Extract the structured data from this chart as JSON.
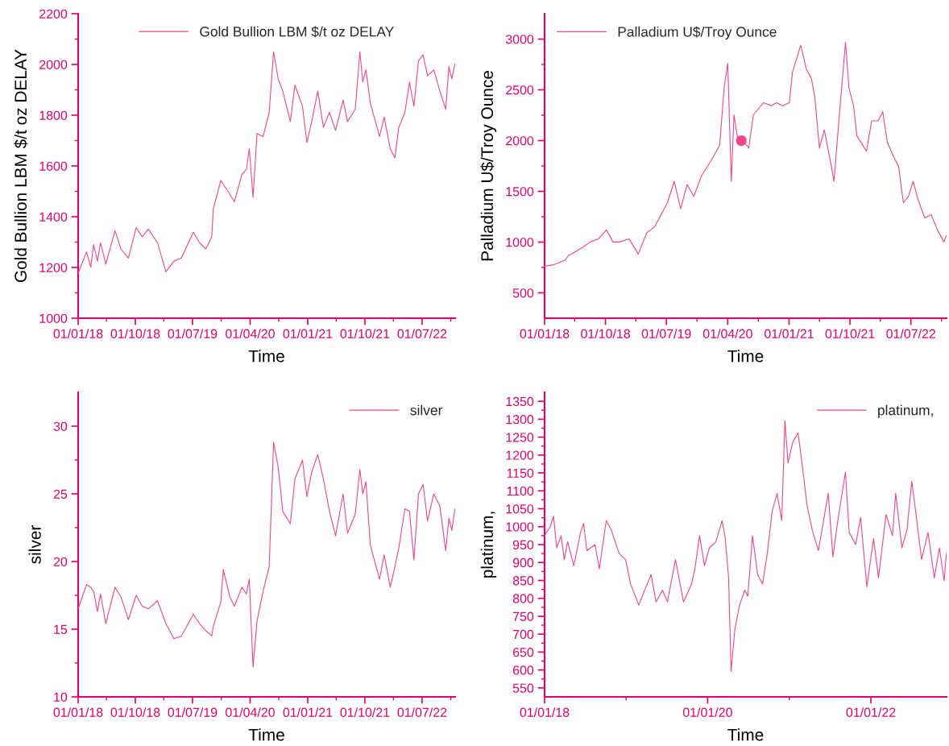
{
  "chart_data": [
    {
      "type": "line",
      "xlabel": "Time",
      "ylabel": "Gold Bullion LBM $/t oz DELAY",
      "legend": "top",
      "x": [
        "2018-01-01",
        "2018-02-10",
        "2018-03-02",
        "2018-03-16",
        "2018-04-03",
        "2018-04-18",
        "2018-05-13",
        "2018-06-26",
        "2018-07-24",
        "2018-08-29",
        "2018-10-05",
        "2018-11-03",
        "2018-12-02",
        "2019-01-15",
        "2019-02-24",
        "2019-04-03",
        "2019-05-09",
        "2019-07-05",
        "2019-08-04",
        "2019-09-02",
        "2019-10-01",
        "2019-10-08",
        "2019-11-13",
        "2019-12-26",
        "2020-01-17",
        "2020-02-22",
        "2020-03-14",
        "2020-03-28",
        "2020-04-15",
        "2020-05-04",
        "2020-06-02",
        "2020-07-01",
        "2020-07-22",
        "2020-08-13",
        "2020-09-04",
        "2020-10-10",
        "2020-11-01",
        "2020-12-07",
        "2020-12-28",
        "2021-01-20",
        "2021-02-18",
        "2021-03-17",
        "2021-04-15",
        "2021-05-14",
        "2021-06-19",
        "2021-07-10",
        "2021-08-16",
        "2021-09-07",
        "2021-09-21",
        "2021-10-06",
        "2021-10-27",
        "2021-12-10",
        "2022-01-01",
        "2022-01-30",
        "2022-02-21",
        "2022-03-12",
        "2022-04-10",
        "2022-05-02",
        "2022-05-23",
        "2022-06-14",
        "2022-07-06",
        "2022-07-27",
        "2022-08-26",
        "2022-09-24",
        "2022-10-22",
        "2022-11-06",
        "2022-11-20",
        "2022-12-05"
      ],
      "series": [
        {
          "name": "Gold Bullion LBM $/t oz DELAY",
          "color": "#f5458a",
          "values": [
            1177,
            1261,
            1201,
            1290,
            1225,
            1297,
            1213,
            1345,
            1273,
            1237,
            1357,
            1321,
            1351,
            1297,
            1183,
            1225,
            1237,
            1339,
            1297,
            1273,
            1321,
            1429,
            1543,
            1489,
            1459,
            1567,
            1585,
            1668,
            1476,
            1728,
            1716,
            1811,
            2050,
            1943,
            1895,
            1775,
            1919,
            1835,
            1692,
            1775,
            1895,
            1752,
            1811,
            1740,
            1860,
            1775,
            1823,
            2050,
            1931,
            1979,
            1847,
            1716,
            1793,
            1668,
            1632,
            1752,
            1811,
            1931,
            1835,
            2015,
            2038,
            1955,
            1979,
            1895,
            1823,
            1991,
            1943,
            2003
          ]
        }
      ],
      "xlim": [
        "2018-01-01",
        "2022-12-06"
      ],
      "xticks": [
        {
          "value": "2018-01-01",
          "label": "01/01/18"
        },
        {
          "value": "2018-05-16",
          "label": null
        },
        {
          "value": "2018-10-01",
          "label": "01/10/18"
        },
        {
          "value": "2019-02-14",
          "label": null
        },
        {
          "value": "2019-07-01",
          "label": "01/07/19"
        },
        {
          "value": "2019-11-15",
          "label": null
        },
        {
          "value": "2020-04-01",
          "label": "01/04/20"
        },
        {
          "value": "2020-08-16",
          "label": null
        },
        {
          "value": "2021-01-01",
          "label": "01/01/21"
        },
        {
          "value": "2021-05-17",
          "label": null
        },
        {
          "value": "2021-10-01",
          "label": "01/10/21"
        },
        {
          "value": "2022-02-14",
          "label": null
        },
        {
          "value": "2022-07-01",
          "label": "01/07/22"
        },
        {
          "value": "2022-11-15",
          "label": null
        }
      ],
      "ylim": [
        1000,
        2200
      ],
      "yticks": [
        1000,
        {
          "value": 1100,
          "label": null
        },
        1200,
        {
          "value": 1300,
          "label": null
        },
        1400,
        {
          "value": 1500,
          "label": null
        },
        1600,
        {
          "value": 1700,
          "label": null
        },
        1800,
        {
          "value": 1900,
          "label": null
        },
        2000,
        {
          "value": 2100,
          "label": null
        },
        2200
      ]
    },
    {
      "type": "line",
      "xlabel": "Time",
      "ylabel": "Palladium U$/Troy Ounce",
      "legend": "top left",
      "x": [
        "2018-01-01",
        "2018-02-10",
        "2018-03-02",
        "2018-03-16",
        "2018-04-03",
        "2018-04-18",
        "2018-05-13",
        "2018-06-26",
        "2018-07-24",
        "2018-08-30",
        "2018-10-05",
        "2018-11-04",
        "2018-12-02",
        "2019-01-15",
        "2019-02-25",
        "2019-04-04",
        "2019-05-09",
        "2019-07-06",
        "2019-08-05",
        "2019-09-03",
        "2019-10-02",
        "2019-11-01",
        "2019-12-06",
        "2020-01-19",
        "2020-02-25",
        "2020-03-16",
        "2020-04-01",
        "2020-04-17",
        "2020-04-29",
        "2020-05-20",
        "2020-06-05",
        "2020-07-04",
        "2020-07-25",
        "2020-09-08",
        "2020-10-14",
        "2020-11-05",
        "2020-12-03",
        "2021-01-02",
        "2021-01-16",
        "2021-02-22",
        "2021-03-20",
        "2021-04-11",
        "2021-04-26",
        "2021-05-17",
        "2021-06-08",
        "2021-07-07",
        "2021-07-21",
        "2021-08-20",
        "2021-09-11",
        "2021-09-26",
        "2021-10-17",
        "2021-11-01",
        "2021-12-14",
        "2022-01-06",
        "2022-02-04",
        "2022-02-25",
        "2022-03-17",
        "2022-04-15",
        "2022-05-07",
        "2022-05-28",
        "2022-06-20",
        "2022-07-11",
        "2022-08-02",
        "2022-09-01",
        "2022-09-30",
        "2022-10-28",
        "2022-11-26",
        "2022-12-06"
      ],
      "series": [
        {
          "name": "Palladium U$/Troy Ounce",
          "color": "#f5458a",
          "values": [
            763,
            777,
            792,
            807,
            822,
            867,
            897,
            956,
            1001,
            1031,
            1120,
            1001,
            1001,
            1031,
            882,
            1091,
            1150,
            1389,
            1598,
            1329,
            1568,
            1449,
            1657,
            1807,
            1956,
            2522,
            2761,
            1598,
            2254,
            1956,
            2016,
            1926,
            2254,
            2373,
            2343,
            2373,
            2343,
            2373,
            2672,
            2940,
            2701,
            2612,
            2433,
            1926,
            2105,
            1777,
            1598,
            2403,
            2970,
            2522,
            2343,
            2045,
            1896,
            2194,
            2194,
            2284,
            1986,
            1837,
            1747,
            1389,
            1449,
            1598,
            1419,
            1240,
            1270,
            1120,
            1001,
            1061
          ]
        },
        {
          "type": "scatter",
          "marker": "circle",
          "color": "#f5458a",
          "x": [
            "2020-06-01"
          ],
          "values": [
            2000
          ]
        }
      ],
      "xlim": [
        "2018-01-01",
        "2022-12-08"
      ],
      "xticks": [
        {
          "value": "2018-01-01",
          "label": "01/01/18"
        },
        {
          "value": "2018-05-16",
          "label": null
        },
        {
          "value": "2018-10-01",
          "label": "01/10/18"
        },
        {
          "value": "2019-02-14",
          "label": null
        },
        {
          "value": "2019-07-01",
          "label": "01/07/19"
        },
        {
          "value": "2019-11-15",
          "label": null
        },
        {
          "value": "2020-04-01",
          "label": "01/04/20"
        },
        {
          "value": "2020-08-16",
          "label": null
        },
        {
          "value": "2021-01-01",
          "label": "01/01/21"
        },
        {
          "value": "2021-05-17",
          "label": null
        },
        {
          "value": "2021-10-01",
          "label": "01/10/21"
        },
        {
          "value": "2022-02-14",
          "label": null
        },
        {
          "value": "2022-07-01",
          "label": "01/07/22"
        },
        {
          "value": "2022-11-15",
          "label": null
        }
      ],
      "ylim": [
        250,
        3250
      ],
      "yticks": [
        500,
        {
          "value": 750,
          "label": null
        },
        1000,
        {
          "value": 1250,
          "label": null
        },
        1500,
        {
          "value": 1750,
          "label": null
        },
        2000,
        {
          "value": 2250,
          "label": null
        },
        2500,
        {
          "value": 2750,
          "label": null
        },
        3000
      ]
    },
    {
      "type": "line",
      "xlabel": "Time",
      "ylabel": "silver",
      "legend": "top right",
      "x": [
        "2018-01-01",
        "2018-02-10",
        "2018-03-02",
        "2018-03-16",
        "2018-04-03",
        "2018-04-18",
        "2018-05-13",
        "2018-06-26",
        "2018-07-24",
        "2018-08-29",
        "2018-10-05",
        "2018-11-03",
        "2018-12-02",
        "2019-01-15",
        "2019-02-24",
        "2019-04-03",
        "2019-05-09",
        "2019-07-05",
        "2019-08-04",
        "2019-09-02",
        "2019-10-01",
        "2019-10-08",
        "2019-11-13",
        "2019-11-25",
        "2019-12-26",
        "2020-01-17",
        "2020-02-22",
        "2020-03-14",
        "2020-03-28",
        "2020-04-15",
        "2020-05-04",
        "2020-06-02",
        "2020-07-01",
        "2020-07-22",
        "2020-08-13",
        "2020-09-04",
        "2020-10-10",
        "2020-11-01",
        "2020-12-07",
        "2020-12-28",
        "2021-01-20",
        "2021-02-18",
        "2021-03-17",
        "2021-04-15",
        "2021-05-14",
        "2021-06-19",
        "2021-07-10",
        "2021-08-16",
        "2021-09-07",
        "2021-09-21",
        "2021-10-06",
        "2021-10-27",
        "2021-12-10",
        "2022-01-01",
        "2022-01-30",
        "2022-02-21",
        "2022-03-12",
        "2022-04-10",
        "2022-05-02",
        "2022-05-23",
        "2022-06-14",
        "2022-07-06",
        "2022-07-27",
        "2022-08-26",
        "2022-09-24",
        "2022-10-22",
        "2022-11-06",
        "2022-11-20",
        "2022-12-05"
      ],
      "series": [
        {
          "name": "silver",
          "color": "#f5458a",
          "values": [
            16.5,
            18.3,
            18.1,
            17.8,
            16.3,
            17.6,
            15.4,
            18.1,
            17.4,
            15.7,
            17.5,
            16.7,
            16.5,
            17.1,
            15.4,
            14.3,
            14.5,
            16.1,
            15.4,
            14.9,
            14.5,
            15.2,
            17.0,
            19.4,
            17.4,
            16.7,
            18.1,
            17.6,
            18.7,
            12.2,
            15.6,
            17.8,
            19.6,
            28.8,
            27.0,
            23.7,
            22.8,
            26.1,
            27.5,
            24.8,
            26.6,
            27.9,
            26.1,
            23.7,
            21.9,
            25.0,
            22.1,
            23.5,
            26.8,
            25.0,
            25.9,
            21.2,
            18.7,
            20.5,
            18.1,
            19.6,
            21.0,
            23.9,
            23.7,
            20.1,
            25.0,
            25.7,
            23.0,
            25.0,
            24.1,
            20.8,
            23.2,
            22.3,
            23.9
          ]
        }
      ],
      "xlim": [
        "2018-01-01",
        "2022-12-06"
      ],
      "xticks": [
        {
          "value": "2018-01-01",
          "label": "01/01/18"
        },
        {
          "value": "2018-05-16",
          "label": null
        },
        {
          "value": "2018-10-01",
          "label": "01/10/18"
        },
        {
          "value": "2019-02-14",
          "label": null
        },
        {
          "value": "2019-07-01",
          "label": "01/07/19"
        },
        {
          "value": "2019-11-15",
          "label": null
        },
        {
          "value": "2020-04-01",
          "label": "01/04/20"
        },
        {
          "value": "2020-08-16",
          "label": null
        },
        {
          "value": "2021-01-01",
          "label": "01/01/21"
        },
        {
          "value": "2021-05-17",
          "label": null
        },
        {
          "value": "2021-10-01",
          "label": "01/10/21"
        },
        {
          "value": "2022-02-14",
          "label": null
        },
        {
          "value": "2022-07-01",
          "label": "01/07/22"
        },
        {
          "value": "2022-11-15",
          "label": null
        }
      ],
      "ylim": [
        10,
        32.5
      ],
      "yticks": [
        10,
        {
          "value": 12.5,
          "label": null
        },
        15,
        {
          "value": 17.5,
          "label": null
        },
        20,
        {
          "value": 22.5,
          "label": null
        },
        25,
        {
          "value": 27.5,
          "label": null
        },
        30
      ]
    },
    {
      "type": "line",
      "xlabel": "Time",
      "ylabel": "platinum,",
      "legend": "top right",
      "x": [
        "2018-01-01",
        "2018-01-26",
        "2018-02-10",
        "2018-02-24",
        "2018-03-16",
        "2018-03-30",
        "2018-04-14",
        "2018-05-12",
        "2018-06-11",
        "2018-06-25",
        "2018-07-09",
        "2018-08-15",
        "2018-09-03",
        "2018-10-04",
        "2018-10-26",
        "2018-12-01",
        "2018-12-30",
        "2019-01-21",
        "2019-02-27",
        "2019-03-25",
        "2019-04-23",
        "2019-05-15",
        "2019-06-13",
        "2019-07-05",
        "2019-08-10",
        "2019-09-15",
        "2019-10-21",
        "2019-11-05",
        "2019-11-26",
        "2019-12-18",
        "2020-01-09",
        "2020-02-07",
        "2020-03-06",
        "2020-03-20",
        "2020-04-04",
        "2020-04-15",
        "2020-05-02",
        "2020-05-23",
        "2020-06-15",
        "2020-06-29",
        "2020-07-20",
        "2020-08-12",
        "2020-09-03",
        "2020-09-24",
        "2020-10-16",
        "2020-11-07",
        "2020-11-28",
        "2020-12-12",
        "2020-12-26",
        "2021-01-17",
        "2021-02-09",
        "2021-03-07",
        "2021-03-21",
        "2021-04-13",
        "2021-05-11",
        "2021-06-24",
        "2021-07-15",
        "2021-08-06",
        "2021-09-09",
        "2021-09-26",
        "2021-10-25",
        "2021-11-16",
        "2021-12-14",
        "2022-01-13",
        "2022-02-04",
        "2022-03-10",
        "2022-04-08",
        "2022-04-22",
        "2022-05-20",
        "2022-06-12",
        "2022-07-03",
        "2022-07-17",
        "2022-08-16",
        "2022-09-14",
        "2022-10-12",
        "2022-11-04",
        "2022-11-25",
        "2022-12-05"
      ],
      "series": [
        {
          "name": "platinum,",
          "color": "#f5458a",
          "values": [
            975,
            1000,
            1030,
            941,
            975,
            908,
            958,
            891,
            984,
            1009,
            933,
            950,
            882,
            1017,
            992,
            925,
            908,
            840,
            781,
            823,
            866,
            790,
            823,
            790,
            908,
            790,
            840,
            882,
            975,
            891,
            941,
            958,
            1017,
            967,
            857,
            596,
            714,
            781,
            823,
            806,
            975,
            866,
            840,
            925,
            1043,
            1093,
            1017,
            1296,
            1178,
            1237,
            1262,
            1135,
            1060,
            992,
            933,
            1093,
            916,
            1017,
            1152,
            984,
            950,
            1026,
            832,
            967,
            857,
            1034,
            975,
            1093,
            941,
            992,
            1127,
            1060,
            908,
            984,
            857,
            941,
            849,
            925
          ]
        }
      ],
      "xlim": [
        "2018-01-01",
        "2022-12-06"
      ],
      "xticks": [
        {
          "value": "2018-01-01",
          "label": "01/01/18"
        },
        {
          "value": "2019-01-01",
          "label": null
        },
        {
          "value": "2020-01-01",
          "label": "01/01/20"
        },
        {
          "value": "2021-01-01",
          "label": null
        },
        {
          "value": "2022-01-01",
          "label": "01/01/22"
        }
      ],
      "ylim": [
        525,
        1375
      ],
      "yticks": [
        550,
        {
          "value": 575,
          "label": null
        },
        600,
        {
          "value": 625,
          "label": null
        },
        650,
        {
          "value": 675,
          "label": null
        },
        700,
        {
          "value": 725,
          "label": null
        },
        750,
        {
          "value": 775,
          "label": null
        },
        800,
        {
          "value": 825,
          "label": null
        },
        850,
        {
          "value": 875,
          "label": null
        },
        900,
        {
          "value": 925,
          "label": null
        },
        950,
        {
          "value": 975,
          "label": null
        },
        1000,
        {
          "value": 1025,
          "label": null
        },
        1050,
        {
          "value": 1075,
          "label": null
        },
        1100,
        {
          "value": 1125,
          "label": null
        },
        1150,
        {
          "value": 1175,
          "label": null
        },
        1200,
        {
          "value": 1225,
          "label": null
        },
        1250,
        {
          "value": 1275,
          "label": null
        },
        1300,
        {
          "value": 1325,
          "label": null
        },
        1350
      ]
    }
  ]
}
